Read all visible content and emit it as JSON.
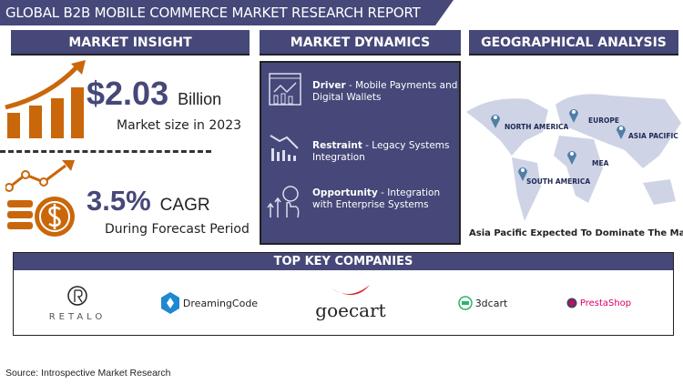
{
  "title": "GLOBAL B2B MOBILE COMMERCE MARKET RESEARCH REPORT",
  "colors": {
    "navy": "#454878",
    "orange": "#c9670a",
    "map": "#cfd3e6",
    "pin": "#4f7fa6"
  },
  "market_insight": {
    "heading": "MARKET INSIGHT",
    "market_size": "$2.03",
    "unit": "Billion",
    "market_size_label": "Market size in 2023",
    "cagr_value": "3.5%",
    "cagr_label": "CAGR",
    "cagr_period": "During Forecast Period",
    "icons": [
      "bar-chart-growth-icon",
      "coin-growth-icon"
    ]
  },
  "market_dynamics": {
    "heading": "MARKET DYNAMICS",
    "items": [
      {
        "label": "Driver",
        "text": " - Mobile Payments and Digital Wallets",
        "icon": "analytics-dashboard-icon"
      },
      {
        "label": "Restraint",
        "text": " - Legacy Systems Integration",
        "icon": "declining-chart-icon"
      },
      {
        "label": "Opportunity",
        "text": " - Integration with Enterprise Systems",
        "icon": "growth-opportunity-icon"
      }
    ]
  },
  "geographical_analysis": {
    "heading": "GEOGRAPHICAL ANALYSIS",
    "regions": [
      "NORTH AMERICA",
      "EUROPE",
      "ASIA PACIFIC",
      "MEA",
      "SOUTH AMERICA"
    ],
    "caption": "Asia Pacific Expected To Dominate The Market"
  },
  "companies": {
    "heading": "TOP KEY COMPANIES",
    "logos": [
      "RETALO",
      "DreamingCode",
      "goecart",
      "3dcart",
      "PrestaShop"
    ]
  },
  "source": "Source: Introspective Market Research"
}
